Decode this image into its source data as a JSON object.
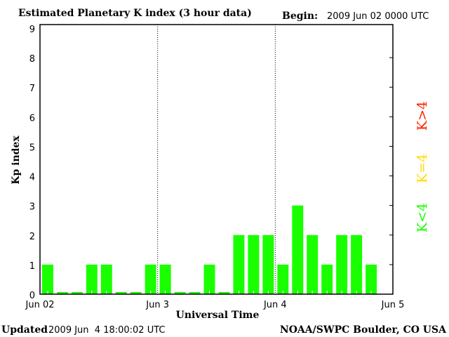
{
  "chart_data": {
    "type": "bar",
    "title": "Estimated Planetary K index (3 hour data)",
    "begin_label": "Begin:",
    "begin_value": "2009 Jun 02 0000 UTC",
    "xlabel": "Universal Time",
    "ylabel": "Kp index",
    "ylim": [
      0,
      9
    ],
    "yticks": [
      "0",
      "1",
      "2",
      "3",
      "4",
      "5",
      "6",
      "7",
      "8",
      "9"
    ],
    "xticks": [
      "Jun 02",
      "Jun 3",
      "Jun 4",
      "Jun 5"
    ],
    "bars_per_day": 8,
    "values": [
      1,
      0,
      0,
      1,
      1,
      0,
      0,
      1,
      1,
      0,
      0,
      1,
      0,
      2,
      2,
      2,
      1,
      3,
      2,
      1,
      2,
      2,
      1
    ],
    "colors": {
      "low": "#1aff00",
      "storm": "#ffdd00",
      "high": "#ff2200"
    },
    "legend": [
      {
        "label": "K<4",
        "color": "#1aff00"
      },
      {
        "label": "K=4",
        "color": "#ffdd00"
      },
      {
        "label": "K>4",
        "color": "#ff2200"
      }
    ]
  },
  "footer": {
    "updated_label": "Updated",
    "updated_value": "2009 Jun  4 18:00:02 UTC",
    "source": "NOAA/SWPC Boulder, CO USA"
  }
}
